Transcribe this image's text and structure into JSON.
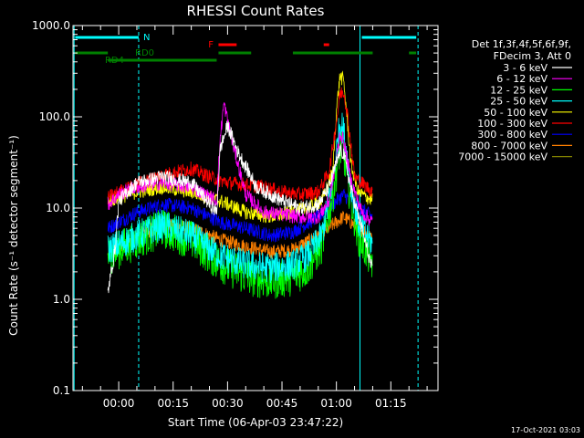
{
  "chart_data": {
    "type": "line",
    "title": "RHESSI Count Rates",
    "xlabel": "Start Time (06-Apr-03 23:47:22)",
    "ylabel": "Count Rate (s⁻¹ detector segment⁻¹)",
    "y_scale": "log",
    "ylim": [
      0.1,
      1000
    ],
    "x_unit": "minutes after 00:00 UT 07-Apr-03",
    "xlim": [
      -12.6,
      88
    ],
    "x_ticks": [
      "00:00",
      "00:15",
      "00:30",
      "00:45",
      "01:00",
      "01:15"
    ],
    "y_ticks": [
      "0.1",
      "1.0",
      "10.0",
      "100.0",
      "1000.0"
    ],
    "legend_header": [
      "Det 1f,3f,4f,5f,6f,9f,",
      "FDecim 3, Att 0"
    ],
    "legend_position": "right",
    "footer": "17-Oct-2021 03:03",
    "series": [
      {
        "name": "3 - 6 keV",
        "color": "#ffffff",
        "x": [
          -3,
          -1,
          0,
          5,
          12,
          20,
          27,
          28,
          30,
          33,
          38,
          45,
          50,
          55,
          58,
          61,
          62,
          64,
          67,
          70
        ],
        "y": [
          1.2,
          3.5,
          12,
          19,
          22,
          19,
          9,
          45,
          80,
          40,
          17,
          12,
          10,
          11,
          17,
          42,
          40,
          16,
          6,
          2
        ]
      },
      {
        "name": "6 - 12 keV",
        "color": "#ff00ff",
        "x": [
          -3,
          0,
          5,
          12,
          20,
          27,
          28,
          29,
          31,
          35,
          40,
          50,
          55,
          58,
          60,
          61,
          62,
          64,
          67,
          70
        ],
        "y": [
          11,
          14,
          17,
          19,
          17,
          12,
          60,
          140,
          60,
          14,
          9,
          8,
          8,
          12,
          35,
          65,
          55,
          20,
          9,
          7
        ]
      },
      {
        "name": "12 - 25 keV",
        "color": "#00ff00",
        "x": [
          -3,
          0,
          5,
          12,
          20,
          28,
          35,
          42,
          48,
          52,
          56,
          59,
          61,
          62,
          64,
          66,
          70
        ],
        "y": [
          3,
          3.5,
          4.5,
          6,
          4.5,
          2.5,
          1.8,
          1.6,
          1.8,
          2.2,
          4,
          14,
          45,
          40,
          12,
          5,
          2.5
        ]
      },
      {
        "name": "25 - 50 keV",
        "color": "#00ffff",
        "x": [
          -3,
          0,
          5,
          12,
          20,
          28,
          35,
          42,
          48,
          52,
          56,
          59,
          61,
          62,
          64,
          66,
          70
        ],
        "y": [
          3.5,
          4,
          5,
          6.5,
          5,
          3,
          2.4,
          2.2,
          2.4,
          3,
          5,
          20,
          90,
          70,
          18,
          7,
          4
        ]
      },
      {
        "name": "50 - 100 keV",
        "color": "#ffff00",
        "x": [
          -3,
          0,
          5,
          12,
          20,
          28,
          35,
          42,
          48,
          52,
          56,
          59,
          60,
          61,
          62,
          63,
          64,
          66,
          70
        ],
        "y": [
          12,
          13,
          15,
          17,
          15,
          12,
          9,
          8,
          9,
          10,
          12,
          25,
          120,
          280,
          250,
          90,
          30,
          15,
          12
        ]
      },
      {
        "name": "100 - 300 keV",
        "color": "#ff0000",
        "x": [
          -3,
          0,
          5,
          12,
          20,
          25,
          30,
          35,
          40,
          45,
          50,
          55,
          58,
          60,
          61,
          62,
          63,
          65,
          70
        ],
        "y": [
          13,
          15,
          18,
          23,
          27,
          22,
          19,
          18,
          17,
          15,
          14,
          15,
          25,
          90,
          180,
          190,
          110,
          22,
          15
        ]
      },
      {
        "name": "300 - 800 keV",
        "color": "#0000ff",
        "x": [
          -3,
          0,
          5,
          12,
          20,
          28,
          35,
          42,
          48,
          55,
          60,
          62,
          65,
          70
        ],
        "y": [
          6,
          7,
          9,
          11,
          10,
          7,
          6,
          5,
          5.5,
          8,
          12,
          14,
          11,
          8
        ]
      },
      {
        "name": "800 - 7000 keV",
        "color": "#ff8000",
        "x": [
          -3,
          0,
          5,
          12,
          20,
          28,
          35,
          42,
          48,
          55,
          60,
          62,
          65,
          70
        ],
        "y": [
          3,
          3.5,
          5,
          6.5,
          6,
          4.5,
          3.8,
          3.3,
          3.5,
          5,
          7,
          8,
          6.5,
          5
        ]
      },
      {
        "name": "7000 - 15000 keV",
        "color": "#808000",
        "x": [],
        "y": []
      }
    ],
    "flag_bars": [
      {
        "label": "N",
        "color": "#00ffff",
        "row": 1,
        "segments": [
          [
            -12,
            5.5
          ],
          [
            67,
            82
          ]
        ]
      },
      {
        "label": "F",
        "color": "#ff0000",
        "row": 2,
        "segments": [
          [
            27.5,
            32.5
          ],
          [
            56.5,
            58
          ]
        ]
      },
      {
        "label": "RD0",
        "color": "#008000",
        "row": 3,
        "segments": [
          [
            -12,
            -3
          ],
          [
            27.5,
            36.5
          ],
          [
            48,
            70
          ],
          [
            80,
            82
          ]
        ]
      },
      {
        "label": "RD4",
        "color": "#008000",
        "row": 4,
        "segments": [
          [
            -3,
            27
          ]
        ]
      }
    ],
    "vertical_lines": [
      {
        "x": -12.3,
        "color": "#00ffff",
        "style": "solid"
      },
      {
        "x": 5.5,
        "color": "#00ffff",
        "style": "dashed"
      },
      {
        "x": 66.5,
        "color": "#00ffff",
        "style": "solid"
      },
      {
        "x": 82.5,
        "color": "#00ffff",
        "style": "dashed"
      }
    ]
  }
}
